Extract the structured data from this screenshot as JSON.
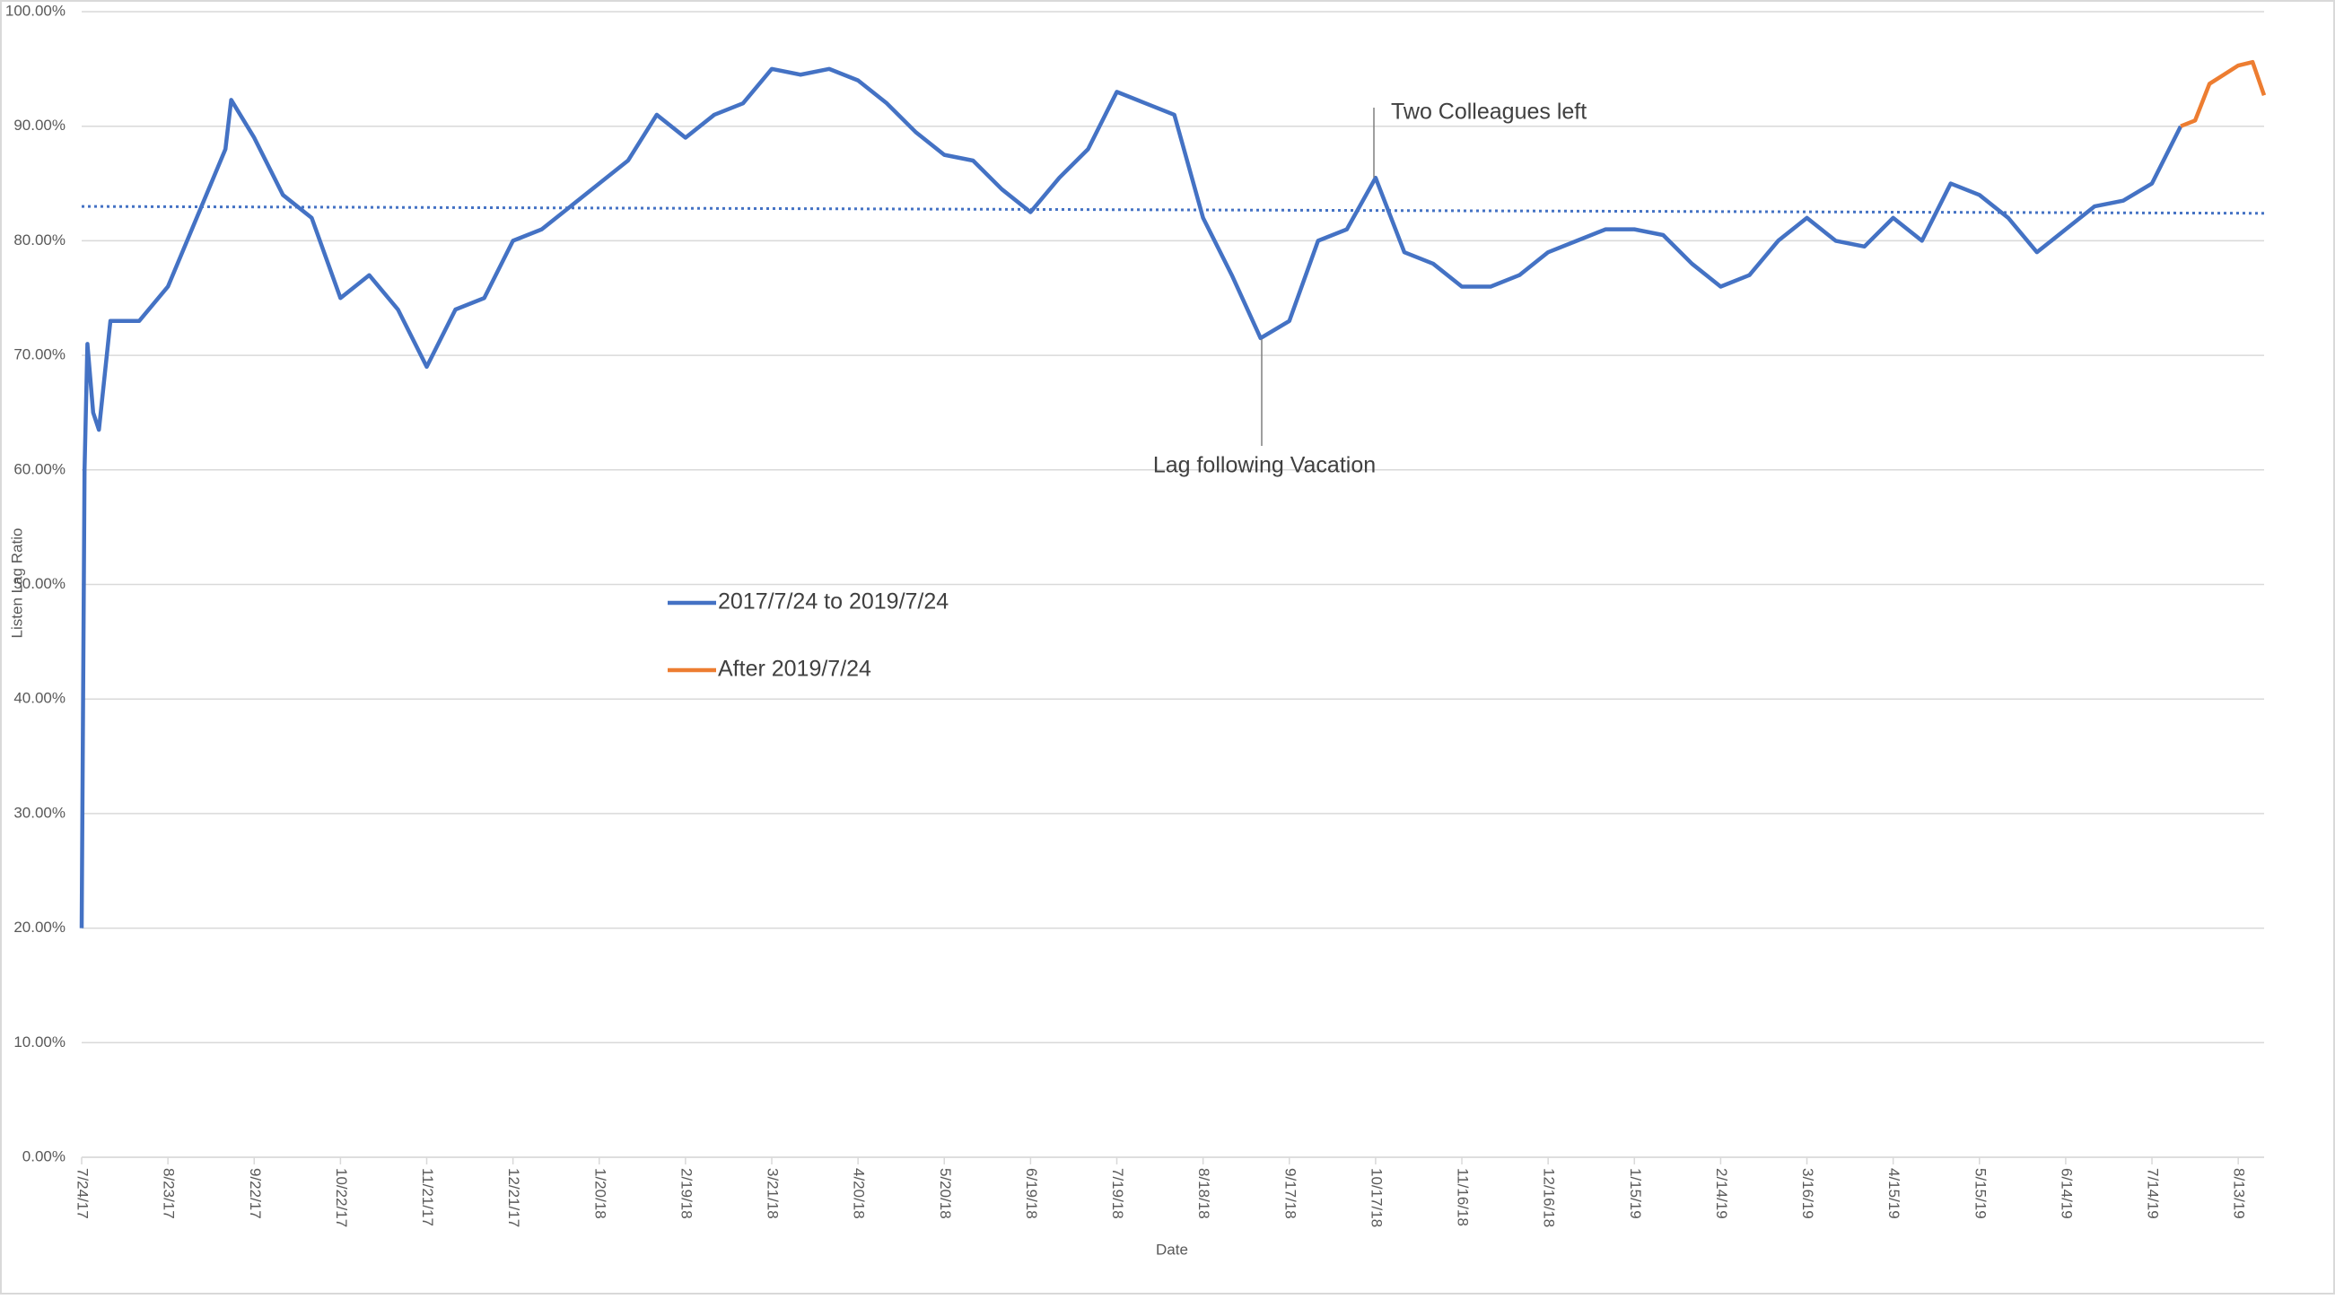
{
  "chart_data": {
    "type": "line",
    "y_label": "Listen Lag Ratio",
    "x_label": "Date",
    "xlim": [
      "7/24/17",
      "8/22/19"
    ],
    "xticks": [
      "7/24/17",
      "8/23/17",
      "9/22/17",
      "10/22/17",
      "11/21/17",
      "12/21/17",
      "1/20/18",
      "2/19/18",
      "3/21/18",
      "4/20/18",
      "5/20/18",
      "6/19/18",
      "7/19/18",
      "8/18/18",
      "9/17/18",
      "10/17/18",
      "11/16/18",
      "12/16/18",
      "1/15/19",
      "2/14/19",
      "3/16/19",
      "4/15/19",
      "5/15/19",
      "6/14/19",
      "7/14/19",
      "8/13/19"
    ],
    "ylim": [
      0,
      100
    ],
    "yticks": [
      {
        "value": 0,
        "label": "0.00%"
      },
      {
        "value": 10,
        "label": "10.00%"
      },
      {
        "value": 20,
        "label": "20.00%"
      },
      {
        "value": 30,
        "label": "30.00%"
      },
      {
        "value": 40,
        "label": "40.00%"
      },
      {
        "value": 50,
        "label": "50.00%"
      },
      {
        "value": 60,
        "label": "60.00%"
      },
      {
        "value": 70,
        "label": "70.00%"
      },
      {
        "value": 80,
        "label": "80.00%"
      },
      {
        "value": 90,
        "label": "90.00%"
      },
      {
        "value": 100,
        "label": "100.00%"
      }
    ],
    "grid": true,
    "series": [
      {
        "name": "2017/7/24 to 2019/7/24",
        "color": "#4472c4",
        "x": [
          "7/24/17",
          "7/25/17",
          "7/26/17",
          "7/28/17",
          "7/30/17",
          "8/3/17",
          "8/13/17",
          "8/23/17",
          "9/2/17",
          "9/12/17",
          "9/14/17",
          "9/22/17",
          "10/2/17",
          "10/12/17",
          "10/22/17",
          "11/1/17",
          "11/11/17",
          "11/21/17",
          "12/1/17",
          "12/11/17",
          "12/21/17",
          "12/31/17",
          "1/10/18",
          "1/20/18",
          "1/30/18",
          "2/9/18",
          "2/19/18",
          "3/1/18",
          "3/11/18",
          "3/21/18",
          "3/31/18",
          "4/10/18",
          "4/20/18",
          "4/30/18",
          "5/10/18",
          "5/20/18",
          "5/30/18",
          "6/9/18",
          "6/19/18",
          "6/29/18",
          "7/9/18",
          "7/19/18",
          "7/29/18",
          "8/8/18",
          "8/18/18",
          "8/28/18",
          "9/7/18",
          "9/17/18",
          "9/27/18",
          "10/7/18",
          "10/17/18",
          "10/27/18",
          "11/6/18",
          "11/16/18",
          "11/26/18",
          "12/6/18",
          "12/16/18",
          "12/26/18",
          "1/5/19",
          "1/15/19",
          "1/25/19",
          "2/4/19",
          "2/14/19",
          "2/24/19",
          "3/6/19",
          "3/16/19",
          "3/26/19",
          "4/5/19",
          "4/15/19",
          "4/25/19",
          "5/5/19",
          "5/15/19",
          "5/25/19",
          "6/4/19",
          "6/14/19",
          "6/24/19",
          "7/4/19",
          "7/14/19",
          "7/24/19"
        ],
        "values": [
          20,
          60,
          71,
          65,
          63.5,
          73,
          73,
          76,
          82,
          88,
          92.3,
          89,
          84,
          82,
          75,
          77,
          74,
          69,
          74,
          75,
          80,
          81,
          83,
          85,
          87,
          91,
          89,
          91,
          92,
          95,
          94.5,
          95,
          94,
          92,
          89.5,
          87.5,
          87,
          84.5,
          82.5,
          85.5,
          88,
          93,
          92,
          91,
          82,
          77,
          71.5,
          73,
          80,
          81,
          85.5,
          79,
          78,
          76,
          76,
          77,
          79,
          80,
          81,
          81,
          80.5,
          78,
          76,
          77,
          80,
          82,
          80,
          79.5,
          82,
          80,
          85,
          84,
          82,
          79,
          81,
          83,
          83.5,
          85,
          90
        ]
      },
      {
        "name": "After 2019/7/24",
        "color": "#ed7d31",
        "x": [
          "7/24/19",
          "7/29/19",
          "8/3/19",
          "8/8/19",
          "8/13/19",
          "8/18/19",
          "8/22/19"
        ],
        "values": [
          90,
          90.5,
          93.7,
          94.5,
          95.3,
          95.6,
          92.7
        ]
      }
    ],
    "trend": {
      "x": [
        "7/24/17",
        "8/22/19"
      ],
      "values": [
        83.0,
        82.4
      ],
      "color": "#4472c4"
    },
    "annotations": [
      "Two Colleagues left",
      "Lag following Vacation"
    ]
  }
}
